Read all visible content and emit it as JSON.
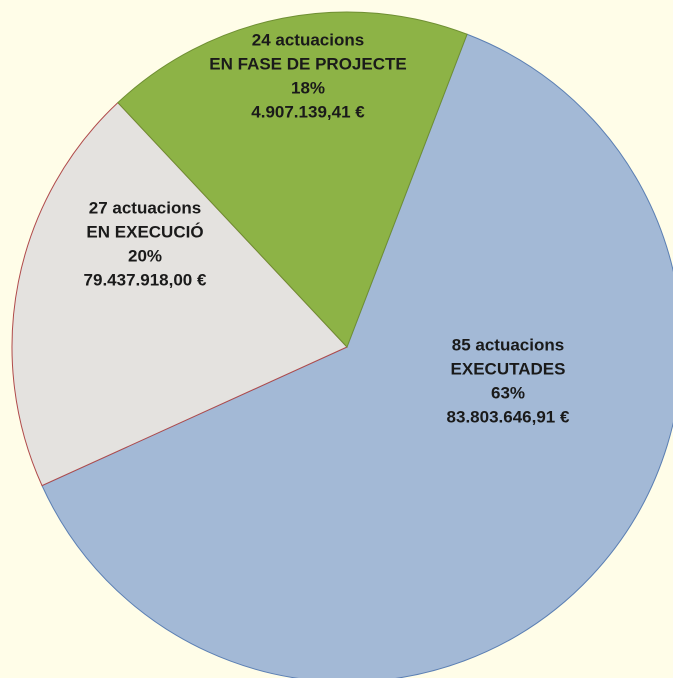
{
  "chart_data": {
    "type": "pie",
    "background_color": "#fffde8",
    "slices": [
      {
        "count_label": "85 actuacions",
        "status_label": "EXECUTADES",
        "percent_label": "63%",
        "amount_label": "83.803.646,91 €",
        "value": 63,
        "color": "#a3b9d6",
        "border_color": "#5b7fb3"
      },
      {
        "count_label": "27 actuacions",
        "status_label": "EN EXECUCIÓ",
        "percent_label": "20%",
        "amount_label": "79.437.918,00 €",
        "value": 20,
        "color": "#e4e2df",
        "border_color": "#b04a4a"
      },
      {
        "count_label": "24 actuacions",
        "status_label": "EN FASE DE PROJECTE",
        "percent_label": "18%",
        "amount_label": "4.907.139,41 €",
        "value": 18,
        "color": "#8db346",
        "border_color": "#6f8f33"
      }
    ]
  }
}
